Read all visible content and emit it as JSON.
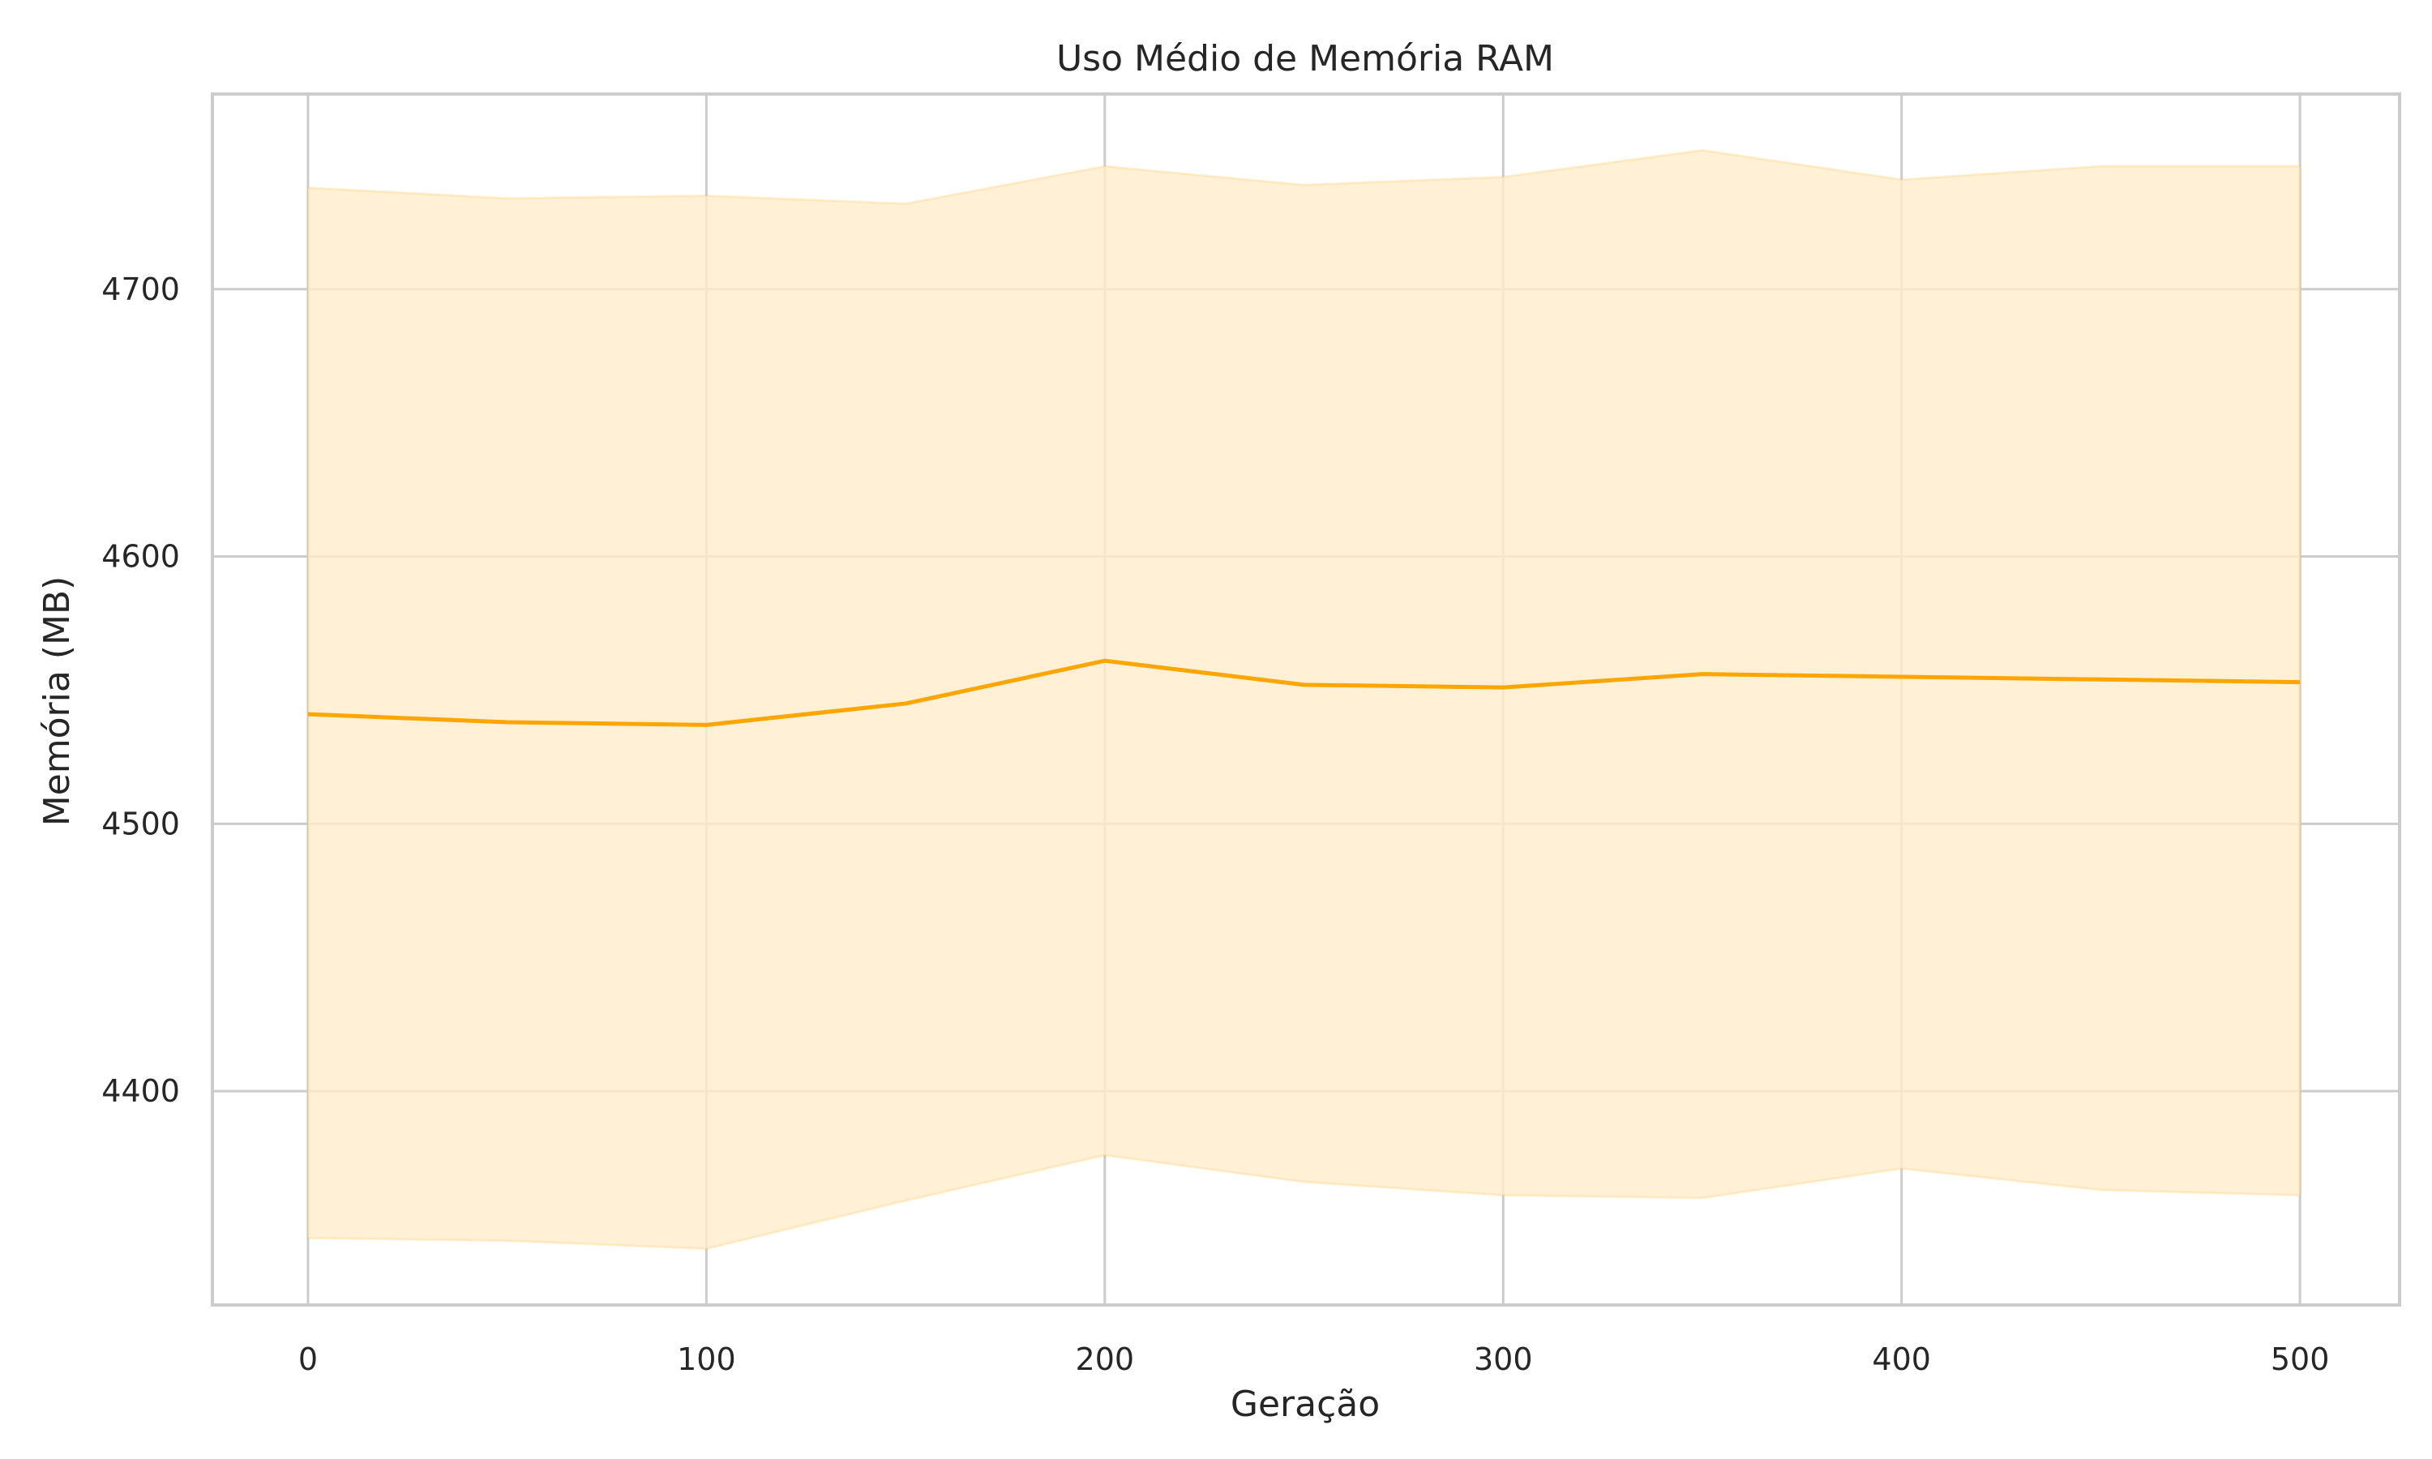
{
  "chart_data": {
    "type": "line",
    "title": "Uso Médio de Memória RAM",
    "xlabel": "Geração",
    "ylabel": "Memória (MB)",
    "x": [
      0,
      50,
      100,
      150,
      200,
      250,
      300,
      350,
      400,
      450,
      500
    ],
    "series": [
      {
        "values": [
          4541,
          4538,
          4537,
          4545,
          4561,
          4552,
          4551,
          4556,
          4555,
          4554,
          4553
        ],
        "upper": [
          4738,
          4734,
          4735,
          4732,
          4746,
          4739,
          4742,
          4752,
          4741,
          4746,
          4746
        ],
        "lower": [
          4345,
          4344,
          4341,
          4359,
          4376,
          4366,
          4361,
          4360,
          4371,
          4363,
          4361
        ],
        "color": "#ffa500",
        "band_color": "#ffeccc"
      }
    ],
    "xlim": [
      -24,
      525
    ],
    "ylim": [
      4320,
      4773
    ],
    "xticks": [
      0,
      100,
      200,
      300,
      400,
      500
    ],
    "yticks": [
      4400,
      4500,
      4600,
      4700
    ],
    "grid": true,
    "legend": "none"
  }
}
